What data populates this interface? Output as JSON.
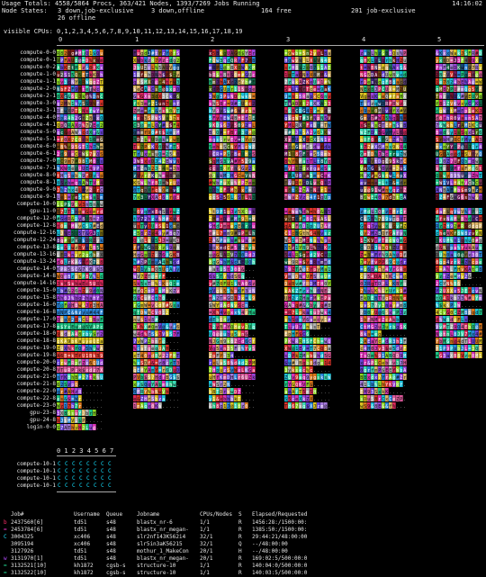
{
  "header": {
    "usage": "Usage Totals: 4558/5864 Procs, 363/421 Nodes, 1393/7269 Jobs Running",
    "clock": "14:16:02",
    "node_states_label": "Node States:",
    "states": [
      "3 down,job-exclusive",
      "3 down,offline",
      "164 free",
      "201 job-exclusive"
    ],
    "offline": "26 offline"
  },
  "visible_cpus": "visible CPUs: 0,1,2,3,4,5,6,7,8,9,10,11,12,13,14,15,16,17,18,19",
  "column_numbers": [
    "0",
    "1",
    "2",
    "3",
    "4",
    "5"
  ],
  "nodes": [
    "compute-0-0",
    "compute-0-1",
    "compute-0-2",
    "compute-1-0",
    "compute-1-1",
    "compute-2-0",
    "compute-2-1",
    "compute-3-0",
    "compute-3-1",
    "compute-4-0",
    "compute-4-1",
    "compute-5-0",
    "compute-5-1",
    "compute-6-0",
    "compute-6-1",
    "compute-7-0",
    "compute-7-1",
    "compute-8-0",
    "compute-8-1",
    "compute-9-0",
    "compute-9-1",
    "compute-10-0",
    "gpu-11-0",
    "compute-12-0",
    "compute-12-8",
    "compute-12-16",
    "compute-12-24",
    "compute-13-8",
    "compute-13-16",
    "compute-13-24",
    "compute-14-0",
    "compute-14-8",
    "compute-14-16",
    "compute-15-0",
    "compute-15-8",
    "compute-16-0",
    "compute-16-8",
    "compute-17-0",
    "compute-17-8",
    "compute-18-0",
    "compute-18-8",
    "compute-19-0",
    "compute-19-8",
    "compute-20-0",
    "compute-20-8",
    "compute-21-0",
    "compute-21-8",
    "compute-22-0",
    "compute-22-8",
    "compute-23-0",
    "gpu-23-8",
    "gpu-24-8",
    "login-0-0"
  ],
  "row_texts": [
    "dddddddd",
    "SSSSSSSSS",
    "RRRRRRRRRR",
    "VVVVVVVVV",
    "Vvvvvvvvvvv",
    "hhhhhhhhhhhh",
    "UUUUUUUUUUU",
    "ZZZZZZZZZZZ",
    "wwwwwwwwwwww",
    "ttttttttt",
    "QQQQQQQQQQ",
    "ffffffffff",
    "ggggggggggg",
    "eeeeeeeeeee",
    "hhhhhhhhhhh",
    "uuuuuuuuuuu",
    "Ccccccccc",
    "KKKKKKKKK"
  ],
  "colors": [
    "#ff2e6a",
    "#ff39d4",
    "#b64dff",
    "#7a4dff",
    "#2f9bff",
    "#1fe0ff",
    "#22e59a",
    "#a6ff2c",
    "#ffe326",
    "#ff8b1f",
    "#ff3b2f",
    "#d0d0d0",
    "#ff66b3",
    "#45ffd2",
    "#c08cff",
    "#ffd27a"
  ],
  "gpu_section": {
    "header": "0 1 2 3 4 5 6 7",
    "nodes": [
      "compute-10-1",
      "compute-10-1",
      "compute-10-1",
      "compute-10-1"
    ],
    "cell_glyph": "C",
    "cell_color": "#15e0ff"
  },
  "jobs": {
    "headers": [
      "Job#",
      "Username",
      "Queue",
      "Jobname",
      "CPUs/Nodes",
      "S",
      "Elapsed/Requested"
    ],
    "rows": [
      {
        "marker": "b",
        "marker_color": "#ff2e6a",
        "job": "2437560[6]",
        "user": "td51",
        "queue": "s48",
        "name": "blastx_nr-6",
        "cpus": "1/1",
        "s": "R",
        "elapsed": "1456:28:/1500:00:"
      },
      {
        "marker": "=",
        "marker_color": "#ff39d4",
        "job": "2453784[6]",
        "user": "td51",
        "queue": "s48",
        "name": "blastx_nr_megan-",
        "cpus": "1/1",
        "s": "R",
        "elapsed": "1385:50:/1500:00:"
      },
      {
        "marker": "C",
        "marker_color": "#1fe0ff",
        "job": "3004325",
        "user": "xc406",
        "queue": "s48",
        "name": "slr2nf143K562i4",
        "cpus": "32/1",
        "s": "R",
        "elapsed": "29:44:21/48:00:00"
      },
      {
        "marker": "",
        "marker_color": "#e6e6e6",
        "job": "3095194",
        "user": "xc406",
        "queue": "s48",
        "name": "slr5in3aK56215",
        "cpus": "32/1",
        "s": "Q",
        "elapsed": "--/48:00:00"
      },
      {
        "marker": "",
        "marker_color": "#e6e6e6",
        "job": "3127926",
        "user": "td51",
        "queue": "s48",
        "name": "mothur_1_MakeCon",
        "cpus": "20/1",
        "s": "H",
        "elapsed": "--/48:00:00"
      },
      {
        "marker": "w",
        "marker_color": "#b64dff",
        "job": "3131970[1]",
        "user": "td51",
        "queue": "s48",
        "name": "blastx_nr_megan-",
        "cpus": "20/1",
        "s": "R",
        "elapsed": "169:02:5/500:00:0"
      },
      {
        "marker": "=",
        "marker_color": "#22e59a",
        "job": "3132521[10]",
        "user": "kh1872",
        "queue": "cgsb-s",
        "name": "structure-10",
        "cpus": "1/1",
        "s": "R",
        "elapsed": "140:04:0/500:00:0"
      },
      {
        "marker": "=",
        "marker_color": "#22e59a",
        "job": "3132522[10]",
        "user": "kh1872",
        "queue": "cgsb-s",
        "name": "structure-10",
        "cpus": "1/1",
        "s": "R",
        "elapsed": "140:03:5/500:00:0"
      }
    ]
  }
}
